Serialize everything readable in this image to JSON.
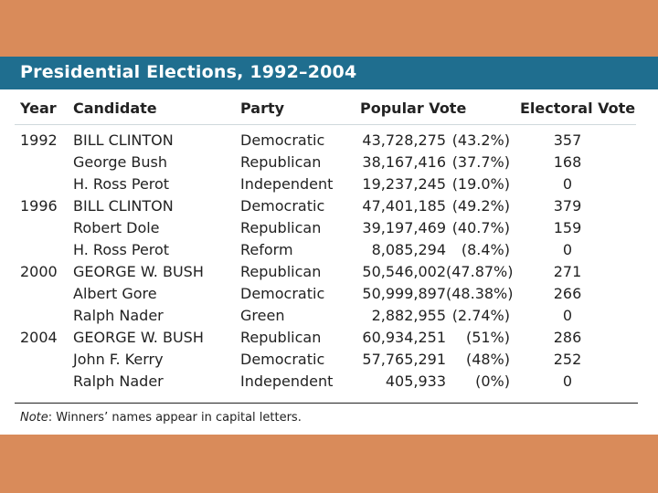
{
  "title": "Presidential Elections, 1992–2004",
  "headers": {
    "year": "Year",
    "candidate": "Candidate",
    "party": "Party",
    "popular_vote": "Popular Vote",
    "electoral_vote": "Electoral Vote"
  },
  "rows": [
    {
      "year": "1992",
      "candidate": "BILL CLINTON",
      "party": "Democratic",
      "votes": "43,728,275",
      "pct": "(43.2%)",
      "electoral": "357"
    },
    {
      "year": "",
      "candidate": "George Bush",
      "party": "Republican",
      "votes": "38,167,416",
      "pct": "(37.7%)",
      "electoral": "168"
    },
    {
      "year": "",
      "candidate": "H. Ross Perot",
      "party": "Independent",
      "votes": "19,237,245",
      "pct": "(19.0%)",
      "electoral": "0"
    },
    {
      "year": "1996",
      "candidate": "BILL CLINTON",
      "party": "Democratic",
      "votes": "47,401,185",
      "pct": "(49.2%)",
      "electoral": "379"
    },
    {
      "year": "",
      "candidate": "Robert Dole",
      "party": "Republican",
      "votes": "39,197,469",
      "pct": "(40.7%)",
      "electoral": "159"
    },
    {
      "year": "",
      "candidate": "H. Ross Perot",
      "party": "Reform",
      "votes": "8,085,294",
      "pct": "(8.4%)",
      "electoral": "0"
    },
    {
      "year": "2000",
      "candidate": "GEORGE W. BUSH",
      "party": "Republican",
      "votes": "50,546,002",
      "pct": "(47.87%)",
      "electoral": "271"
    },
    {
      "year": "",
      "candidate": "Albert Gore",
      "party": "Democratic",
      "votes": "50,999,897",
      "pct": "(48.38%)",
      "electoral": "266"
    },
    {
      "year": "",
      "candidate": "Ralph Nader",
      "party": "Green",
      "votes": "2,882,955",
      "pct": "(2.74%)",
      "electoral": "0"
    },
    {
      "year": "2004",
      "candidate": "GEORGE W. BUSH",
      "party": "Republican",
      "votes": "60,934,251",
      "pct": "(51%)",
      "electoral": "286"
    },
    {
      "year": "",
      "candidate": "John F. Kerry",
      "party": "Democratic",
      "votes": "57,765,291",
      "pct": "(48%)",
      "electoral": "252"
    },
    {
      "year": "",
      "candidate": "Ralph Nader",
      "party": "Independent",
      "votes": "405,933",
      "pct": "(0%)",
      "electoral": "0"
    }
  ],
  "note": {
    "label": "Note",
    "text": ": Winners’ names appear in capital letters."
  }
}
